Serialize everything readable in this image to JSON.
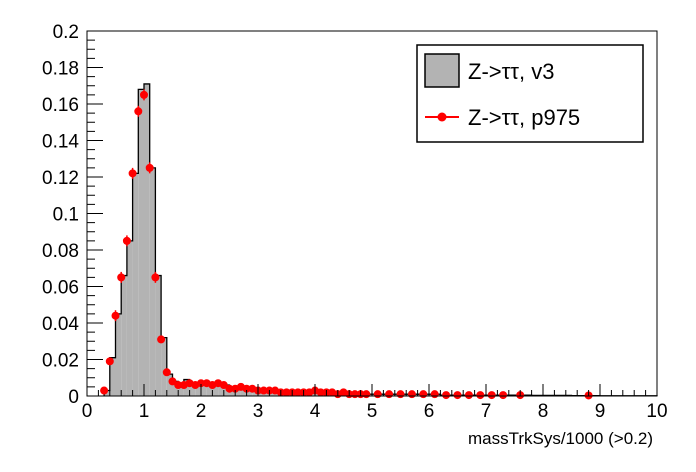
{
  "chart_data": {
    "type": "bar",
    "title": "",
    "xlabel": "massTrkSys/1000 (>0.2)",
    "ylabel": "",
    "xlim": [
      0,
      10
    ],
    "ylim": [
      0,
      0.2
    ],
    "x_ticks": [
      "0",
      "1",
      "2",
      "3",
      "4",
      "5",
      "6",
      "7",
      "8",
      "9",
      "10"
    ],
    "y_ticks": [
      "0",
      "0.02",
      "0.04",
      "0.06",
      "0.08",
      "0.1",
      "0.12",
      "0.14",
      "0.16",
      "0.18",
      "0.2"
    ],
    "grid": false,
    "legend_position": "top-right",
    "series": [
      {
        "name": "Z->ττ, v3",
        "kind": "histogram",
        "color": "#b3b3b3",
        "bins_x": [
          0.3,
          0.4,
          0.5,
          0.6,
          0.7,
          0.8,
          0.9,
          1.0,
          1.1,
          1.2,
          1.3,
          1.4,
          1.5,
          1.6,
          1.7,
          1.8,
          1.9,
          2.0,
          2.1,
          2.2,
          2.3,
          2.4,
          2.5,
          2.6,
          2.7,
          2.8,
          2.9,
          3.0,
          3.1,
          3.2,
          3.3,
          3.4,
          3.5,
          3.6,
          3.7,
          3.8,
          3.9,
          4.0,
          4.1,
          4.2,
          4.3,
          4.4,
          4.5,
          4.6,
          4.7,
          4.8,
          4.9,
          5.0,
          5.2,
          5.4,
          5.6,
          5.8,
          6.0,
          6.2,
          6.4,
          6.6,
          6.8,
          7.0,
          7.2,
          7.4,
          7.6,
          7.8,
          8.0,
          8.5,
          9.0,
          9.5
        ],
        "values": [
          0.003,
          0.021,
          0.045,
          0.066,
          0.085,
          0.122,
          0.168,
          0.171,
          0.125,
          0.066,
          0.032,
          0.012,
          0.008,
          0.006,
          0.009,
          0.007,
          0.007,
          0.006,
          0.007,
          0.007,
          0.006,
          0.006,
          0.004,
          0.004,
          0.004,
          0.004,
          0.003,
          0.003,
          0.003,
          0.003,
          0.002,
          0.002,
          0.002,
          0.002,
          0.002,
          0.002,
          0.002,
          0.002,
          0.002,
          0.002,
          0.002,
          0.001,
          0.001,
          0.001,
          0.001,
          0.001,
          0.001,
          0.001,
          0.001,
          0.001,
          0.001,
          0.001,
          0.001,
          0.0005,
          0.0005,
          0.0005,
          0.0005,
          0.0005,
          0.0005,
          0.0005,
          0.0005,
          0.0003,
          0.0003,
          0.0002,
          0.0001,
          0.0001
        ],
        "bin_width": [
          0.1,
          0.1,
          0.1,
          0.1,
          0.1,
          0.1,
          0.1,
          0.1,
          0.1,
          0.1,
          0.1,
          0.1,
          0.1,
          0.1,
          0.1,
          0.1,
          0.1,
          0.1,
          0.1,
          0.1,
          0.1,
          0.1,
          0.1,
          0.1,
          0.1,
          0.1,
          0.1,
          0.1,
          0.1,
          0.1,
          0.1,
          0.1,
          0.1,
          0.1,
          0.1,
          0.1,
          0.1,
          0.1,
          0.1,
          0.1,
          0.1,
          0.1,
          0.1,
          0.1,
          0.1,
          0.1,
          0.1,
          0.2,
          0.2,
          0.2,
          0.2,
          0.2,
          0.2,
          0.2,
          0.2,
          0.2,
          0.2,
          0.2,
          0.2,
          0.2,
          0.2,
          0.2,
          0.5,
          0.5,
          0.5,
          0.5
        ]
      },
      {
        "name": "Z->ττ, p975",
        "kind": "points",
        "color": "#ff0000",
        "x": [
          0.3,
          0.4,
          0.5,
          0.6,
          0.7,
          0.8,
          0.9,
          1.0,
          1.1,
          1.2,
          1.3,
          1.4,
          1.5,
          1.6,
          1.7,
          1.8,
          1.9,
          2.0,
          2.1,
          2.2,
          2.3,
          2.4,
          2.5,
          2.6,
          2.7,
          2.8,
          2.9,
          3.0,
          3.1,
          3.2,
          3.3,
          3.4,
          3.5,
          3.6,
          3.7,
          3.8,
          3.9,
          4.0,
          4.1,
          4.2,
          4.3,
          4.4,
          4.5,
          4.6,
          4.7,
          4.8,
          4.9,
          5.1,
          5.3,
          5.5,
          5.7,
          5.9,
          6.1,
          6.3,
          6.5,
          6.7,
          6.9,
          7.1,
          7.3,
          7.6,
          8.8
        ],
        "y": [
          0.003,
          0.019,
          0.044,
          0.065,
          0.085,
          0.122,
          0.156,
          0.165,
          0.125,
          0.065,
          0.031,
          0.013,
          0.008,
          0.006,
          0.006,
          0.007,
          0.006,
          0.007,
          0.007,
          0.006,
          0.007,
          0.006,
          0.004,
          0.004,
          0.005,
          0.004,
          0.004,
          0.003,
          0.003,
          0.003,
          0.003,
          0.002,
          0.002,
          0.002,
          0.002,
          0.002,
          0.002,
          0.003,
          0.002,
          0.002,
          0.002,
          0.001,
          0.002,
          0.001,
          0.001,
          0.001,
          0.001,
          0.001,
          0.001,
          0.001,
          0.001,
          0.001,
          0.001,
          0.0005,
          0.0005,
          0.0005,
          0.0005,
          0.0005,
          0.0005,
          0.0005,
          0.0003
        ],
        "err": [
          0.001,
          0.002,
          0.003,
          0.003,
          0.003,
          0.003,
          0.003,
          0.003,
          0.003,
          0.003,
          0.002,
          0.001,
          0.001,
          0.001,
          0.001,
          0.001,
          0.001,
          0.001,
          0.001,
          0.001,
          0.001,
          0.001,
          0.001,
          0.001,
          0.001,
          0.001,
          0.001,
          0.001,
          0.001,
          0.001,
          0.001,
          0.0005,
          0.0005,
          0.0005,
          0.0005,
          0.0005,
          0.0005,
          0.0005,
          0.0005,
          0.0005,
          0.0005,
          0.0005,
          0.0005,
          0.0005,
          0.0005,
          0.0005,
          0.0005,
          0.0005,
          0.0005,
          0.0005,
          0.0005,
          0.0005,
          0.0005,
          0.0003,
          0.0003,
          0.0003,
          0.0003,
          0.0003,
          0.0003,
          0.0003,
          0.0002
        ]
      }
    ]
  }
}
